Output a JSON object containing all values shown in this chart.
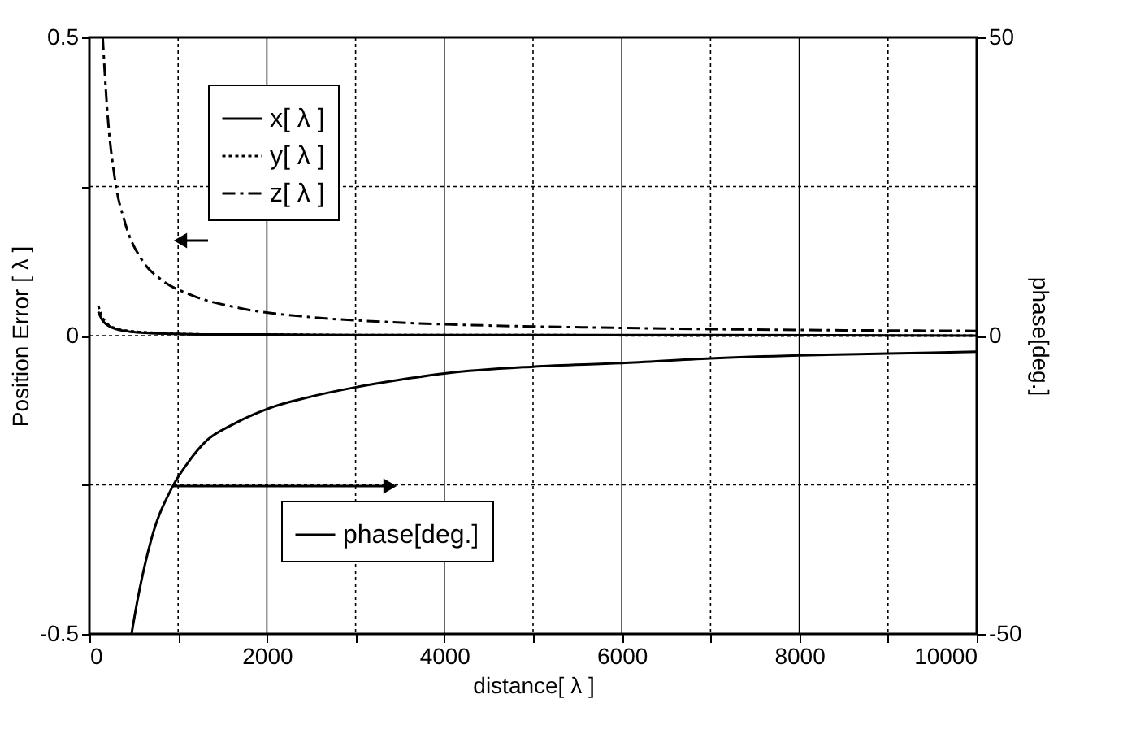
{
  "chart_data": {
    "type": "line",
    "xlabel": "distance[ λ ]",
    "ylabel": "Position Error [ λ ]",
    "y2label": "phase[deg.]",
    "xlim": [
      0,
      10000
    ],
    "xticks": [
      0,
      {
        "value": 1000,
        "label": null
      },
      2000,
      {
        "value": 3000,
        "label": null
      },
      4000,
      {
        "value": 5000,
        "label": null
      },
      6000,
      {
        "value": 7000,
        "label": null
      },
      8000,
      {
        "value": 9000,
        "label": null
      },
      10000
    ],
    "ylim": [
      -0.5,
      0.5
    ],
    "yticks": [
      -0.5,
      {
        "value": -0.25,
        "label": null
      },
      0,
      {
        "value": 0.25,
        "label": null
      },
      0.5
    ],
    "y2lim": [
      -50,
      50
    ],
    "y2ticks": [
      -50,
      0,
      50
    ],
    "grid": true,
    "legend": "top left",
    "series": [
      {
        "name": "x[ λ ]",
        "color": "#000000",
        "line_style": "solid",
        "x": [
          100,
          150,
          200,
          300,
          500,
          700,
          1000,
          1500,
          2000,
          3000,
          5000,
          7000,
          10000
        ],
        "values": [
          0.04,
          0.025,
          0.018,
          0.011,
          0.006,
          0.004,
          0.003,
          0.002,
          0.002,
          0.001,
          0.001,
          0.001,
          0.0
        ]
      },
      {
        "name": "y[ λ ]",
        "color": "#000000",
        "line_style": "dotted",
        "x": [
          100,
          150,
          200,
          300,
          500,
          700,
          1000,
          1500,
          2000,
          3000,
          5000,
          7000,
          10000
        ],
        "values": [
          0.05,
          0.03,
          0.02,
          0.012,
          0.007,
          0.005,
          0.003,
          0.002,
          0.002,
          0.001,
          0.001,
          0.0,
          0.0
        ]
      },
      {
        "name": "z[ λ ]",
        "color": "#000000",
        "line_style": "dashdot",
        "x": [
          150,
          200,
          290,
          400,
          600,
          800,
          1150,
          1700,
          2500,
          3350,
          4500,
          5550,
          7000,
          8500,
          10000
        ],
        "values": [
          0.5,
          0.38,
          0.26,
          0.19,
          0.125,
          0.095,
          0.068,
          0.046,
          0.031,
          0.023,
          0.017,
          0.014,
          0.011,
          0.009,
          0.008
        ]
      },
      {
        "name": "phase[deg.]",
        "color": "#000000",
        "line_style": "solid",
        "axis": "y2",
        "x": [
          475,
          550,
          700,
          930,
          1100,
          1335,
          1600,
          2000,
          2500,
          2980,
          3500,
          4020,
          5000,
          6000,
          7000,
          8000,
          9000,
          10000
        ],
        "values": [
          -50,
          -43.7,
          -34,
          -25.5,
          -21.5,
          -17.4,
          -15,
          -12.3,
          -10.2,
          -8.7,
          -7.4,
          -6.3,
          -5.2,
          -4.6,
          -3.8,
          -3.3,
          -3,
          -2.7
        ]
      }
    ]
  }
}
